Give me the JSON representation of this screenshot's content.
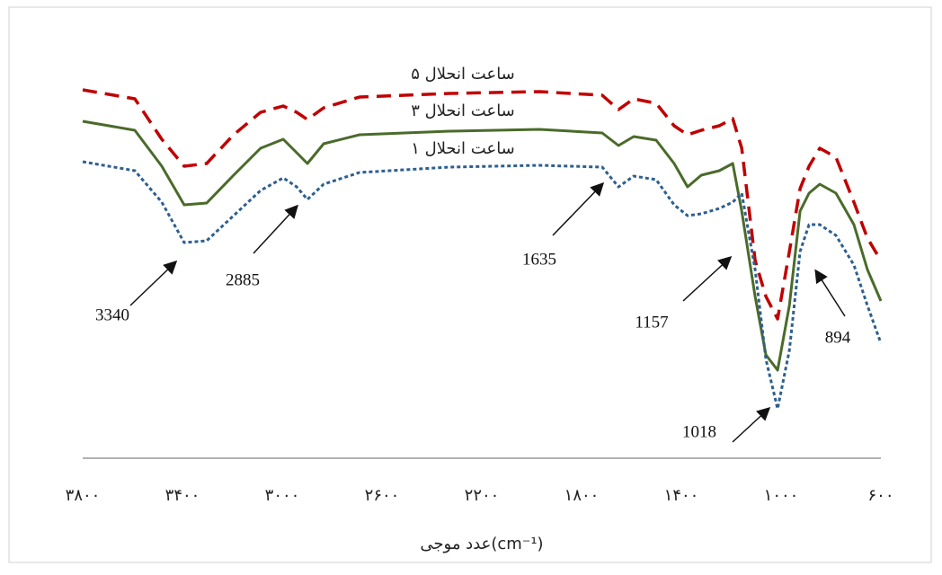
{
  "chart_data": {
    "type": "line",
    "x_label": "عدد موجی(cm⁻¹)",
    "xlim": [
      3800,
      600
    ],
    "ylim": [
      0,
      430
    ],
    "xticks": [
      {
        "value": 3800,
        "label": "۳۸۰۰"
      },
      {
        "value": 3400,
        "label": "۳۴۰۰"
      },
      {
        "value": 3000,
        "label": "۳۰۰۰"
      },
      {
        "value": 2600,
        "label": "۲۶۰۰"
      },
      {
        "value": 2200,
        "label": "۲۲۰۰"
      },
      {
        "value": 1800,
        "label": "۱۸۰۰"
      },
      {
        "value": 1400,
        "label": "۱۴۰۰"
      },
      {
        "value": 1000,
        "label": "۱۰۰۰"
      },
      {
        "value": 600,
        "label": "۶۰۰"
      }
    ],
    "x": [
      3800,
      3591,
      3483,
      3393,
      3303,
      3195,
      3087,
      2996,
      2942,
      2899,
      2834,
      2690,
      2330,
      1969,
      1717,
      1652,
      1591,
      1501,
      1429,
      1375,
      1320,
      1248,
      1194,
      1158,
      1104,
      1061,
      1014,
      967,
      924,
      888,
      845,
      780,
      708,
      654,
      600
    ],
    "series": [
      {
        "name": "۵ ساعت انحلال",
        "color": "#c00000",
        "style": "dashed",
        "values": [
          410,
          400,
          355,
          325,
          328,
          360,
          385,
          392,
          385,
          377,
          390,
          402,
          406,
          408,
          404,
          388,
          400,
          395,
          370,
          360,
          365,
          370,
          378,
          345,
          220,
          180,
          155,
          230,
          300,
          325,
          345,
          335,
          285,
          245,
          220
        ]
      },
      {
        "name": "۳ ساعت انحلال",
        "color": "#4a6b2a",
        "style": "solid",
        "values": [
          375,
          365,
          325,
          282,
          284,
          315,
          345,
          355,
          340,
          328,
          350,
          360,
          364,
          366,
          362,
          348,
          358,
          354,
          328,
          302,
          315,
          320,
          328,
          275,
          180,
          115,
          98,
          170,
          275,
          295,
          305,
          295,
          260,
          210,
          175
        ]
      },
      {
        "name": "۱ ساعت انحلال",
        "color": "#2e5f8f",
        "style": "dotted",
        "values": [
          330,
          320,
          285,
          240,
          242,
          270,
          298,
          312,
          302,
          288,
          305,
          318,
          324,
          326,
          324,
          302,
          314,
          310,
          282,
          270,
          272,
          278,
          285,
          295,
          210,
          110,
          55,
          120,
          230,
          260,
          260,
          248,
          215,
          170,
          128
        ]
      }
    ],
    "annotations": [
      {
        "text": "3340"
      },
      {
        "text": "2885"
      },
      {
        "text": "1635"
      },
      {
        "text": "1157"
      },
      {
        "text": "1018"
      },
      {
        "text": "894"
      }
    ]
  }
}
